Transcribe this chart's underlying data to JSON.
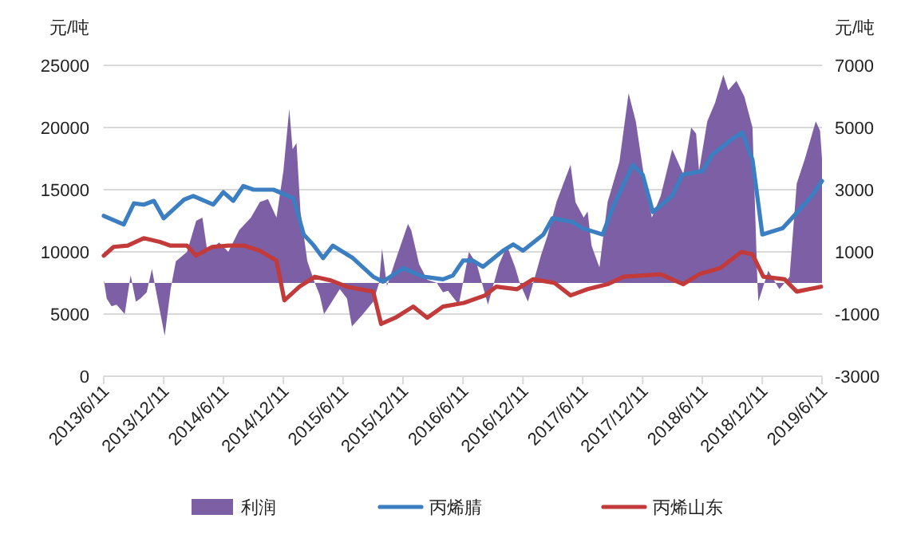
{
  "chart_data": {
    "type": "line",
    "ylabel": "元/吨",
    "y2label": "元/吨",
    "xlim": [
      "2013-06-11",
      "2019-06-11"
    ],
    "xticks": [
      {
        "value": "2013-06-11",
        "label": "2013/6/11"
      },
      {
        "value": "2013-12-11",
        "label": "2013/12/11"
      },
      {
        "value": "2014-06-11",
        "label": "2014/6/11"
      },
      {
        "value": "2014-12-11",
        "label": "2014/12/11"
      },
      {
        "value": "2015-06-11",
        "label": "2015/6/11"
      },
      {
        "value": "2015-12-11",
        "label": "2015/12/11"
      },
      {
        "value": "2016-06-11",
        "label": "2016/6/11"
      },
      {
        "value": "2016-12-11",
        "label": "2016/12/11"
      },
      {
        "value": "2017-06-11",
        "label": "2017/6/11"
      },
      {
        "value": "2017-12-11",
        "label": "2017/12/11"
      },
      {
        "value": "2018-06-11",
        "label": "2018/6/11"
      },
      {
        "value": "2018-12-11",
        "label": "2018/12/11"
      },
      {
        "value": "2019-06-11",
        "label": "2019/6/11"
      }
    ],
    "ylim": [
      0,
      25000
    ],
    "yticks": [
      0,
      5000,
      10000,
      15000,
      20000,
      25000
    ],
    "y2lim": [
      -3000,
      7000
    ],
    "y2ticks": [
      -3000,
      -1000,
      1000,
      3000,
      5000,
      7000
    ],
    "grid": "y",
    "legend": "bottom",
    "series": [
      {
        "name": "利润",
        "type": "area",
        "axis": "y2",
        "color": "#7d5fa5",
        "x": [
          "2013-06-11",
          "2013-06-20",
          "2013-07-05",
          "2013-07-20",
          "2013-08-14",
          "2013-09-01",
          "2013-09-17",
          "2013-10-01",
          "2013-10-20",
          "2013-11-05",
          "2013-11-20",
          "2013-12-14",
          "2014-01-01",
          "2014-01-17",
          "2014-02-20",
          "2014-03-20",
          "2014-04-08",
          "2014-04-23",
          "2014-05-29",
          "2014-06-26",
          "2014-07-29",
          "2014-09-03",
          "2014-09-30",
          "2014-10-25",
          "2014-11-20",
          "2014-12-11",
          "2014-12-29",
          "2015-01-08",
          "2015-01-20",
          "2015-02-01",
          "2015-02-22",
          "2015-03-17",
          "2015-04-01",
          "2015-04-14",
          "2015-05-08",
          "2015-06-01",
          "2015-06-23",
          "2015-07-08",
          "2015-08-11",
          "2015-09-11",
          "2015-09-29",
          "2015-10-08",
          "2015-10-23",
          "2015-11-17",
          "2015-12-26",
          "2016-01-05",
          "2016-01-29",
          "2016-02-23",
          "2016-03-23",
          "2016-04-11",
          "2016-04-26",
          "2016-05-29",
          "2016-06-29",
          "2016-07-23",
          "2016-08-26",
          "2016-09-29",
          "2016-10-23",
          "2016-11-17",
          "2016-12-01",
          "2016-12-26",
          "2017-02-04",
          "2017-02-23",
          "2017-03-23",
          "2017-04-17",
          "2017-05-05",
          "2017-05-20",
          "2017-06-14",
          "2017-06-26",
          "2017-07-08",
          "2017-08-01",
          "2017-08-26",
          "2017-10-01",
          "2017-10-29",
          "2017-11-20",
          "2017-12-14",
          "2018-01-08",
          "2018-02-04",
          "2018-03-11",
          "2018-04-14",
          "2018-05-08",
          "2018-05-23",
          "2018-06-01",
          "2018-06-26",
          "2018-07-20",
          "2018-08-14",
          "2018-08-29",
          "2018-09-23",
          "2018-10-17",
          "2018-11-11",
          "2018-11-26",
          "2018-11-29",
          "2018-12-29",
          "2019-02-01",
          "2019-03-04",
          "2019-03-26",
          "2019-04-20",
          "2019-05-23",
          "2019-06-05",
          "2019-06-11"
        ],
        "values": [
          100,
          -500,
          -750,
          -700,
          -1000,
          250,
          -600,
          -500,
          -300,
          450,
          -400,
          -1700,
          -200,
          700,
          1000,
          2000,
          2100,
          1000,
          1300,
          1000,
          1700,
          2100,
          2600,
          2700,
          2100,
          3600,
          5600,
          4300,
          4500,
          2300,
          700,
          0,
          -400,
          -1000,
          -600,
          -200,
          -500,
          -1400,
          -1000,
          -600,
          0,
          1100,
          -100,
          700,
          1900,
          1700,
          600,
          100,
          0,
          -300,
          -250,
          -700,
          1000,
          600,
          -700,
          600,
          1200,
          500,
          0,
          -600,
          900,
          1500,
          2600,
          3300,
          3800,
          2600,
          2100,
          2300,
          1200,
          500,
          2600,
          3900,
          6100,
          5200,
          3500,
          2100,
          2800,
          4300,
          3500,
          5000,
          4800,
          3600,
          5200,
          5800,
          6700,
          6200,
          6500,
          6000,
          5000,
          0,
          -600,
          400,
          -200,
          200,
          3200,
          4000,
          5200,
          4900,
          4000
        ]
      },
      {
        "name": "丙烯腈",
        "color": "#3b7ec2",
        "x": [
          "2013-06-11",
          "2013-08-11",
          "2013-09-11",
          "2013-10-11",
          "2013-11-11",
          "2013-12-11",
          "2014-02-11",
          "2014-03-11",
          "2014-05-11",
          "2014-06-11",
          "2014-07-11",
          "2014-08-11",
          "2014-09-11",
          "2014-11-11",
          "2015-01-11",
          "2015-02-11",
          "2015-03-11",
          "2015-04-11",
          "2015-05-11",
          "2015-07-11",
          "2015-09-11",
          "2015-10-11",
          "2015-12-11",
          "2016-02-11",
          "2016-04-11",
          "2016-05-11",
          "2016-06-11",
          "2016-07-11",
          "2016-08-11",
          "2016-10-11",
          "2016-11-11",
          "2016-12-11",
          "2017-02-11",
          "2017-03-11",
          "2017-05-11",
          "2017-06-11",
          "2017-08-11",
          "2017-09-11",
          "2017-11-11",
          "2017-12-11",
          "2018-01-11",
          "2018-03-11",
          "2018-04-11",
          "2018-06-11",
          "2018-07-11",
          "2018-09-11",
          "2018-10-11",
          "2018-11-11",
          "2018-12-11",
          "2019-02-11",
          "2019-03-11",
          "2019-05-11",
          "2019-06-11"
        ],
        "values": [
          12900,
          12200,
          13900,
          13800,
          14100,
          12700,
          14200,
          14500,
          13800,
          14800,
          14100,
          15300,
          15000,
          15000,
          14300,
          11400,
          10600,
          9500,
          10500,
          9500,
          8000,
          7600,
          8700,
          8000,
          7800,
          8100,
          9300,
          9300,
          8800,
          10100,
          10600,
          10100,
          11400,
          12700,
          12400,
          11900,
          11400,
          13600,
          17000,
          16200,
          13200,
          14500,
          16200,
          16500,
          17800,
          19100,
          19600,
          17400,
          11400,
          11900,
          12700,
          14500,
          15700
        ]
      },
      {
        "name": "丙烯山东",
        "color": "#c23b3a",
        "x": [
          "2013-06-11",
          "2013-07-11",
          "2013-08-23",
          "2013-10-11",
          "2013-11-29",
          "2014-01-01",
          "2014-02-20",
          "2014-03-20",
          "2014-05-08",
          "2014-06-26",
          "2014-08-14",
          "2014-09-30",
          "2014-11-20",
          "2014-12-14",
          "2015-01-29",
          "2015-03-17",
          "2015-05-05",
          "2015-06-23",
          "2015-09-11",
          "2015-10-05",
          "2015-11-17",
          "2016-01-11",
          "2016-02-23",
          "2016-04-11",
          "2016-06-14",
          "2016-08-17",
          "2016-09-20",
          "2016-11-23",
          "2017-01-11",
          "2017-03-17",
          "2017-05-05",
          "2017-06-26",
          "2017-08-26",
          "2017-10-14",
          "2018-02-04",
          "2018-04-14",
          "2018-06-01",
          "2018-08-05",
          "2018-10-08",
          "2018-11-11",
          "2018-12-14",
          "2019-02-17",
          "2019-03-26",
          "2019-06-08"
        ],
        "values": [
          9700,
          10400,
          10500,
          11100,
          10800,
          10500,
          10500,
          9700,
          10400,
          10500,
          10500,
          10100,
          9300,
          6100,
          7200,
          8000,
          7700,
          7200,
          6800,
          4200,
          4700,
          5600,
          4700,
          5600,
          5900,
          6500,
          7200,
          7000,
          7800,
          7500,
          6500,
          7000,
          7400,
          8000,
          8200,
          7400,
          8200,
          8700,
          10000,
          9800,
          8000,
          7800,
          6800,
          7200
        ]
      }
    ]
  }
}
